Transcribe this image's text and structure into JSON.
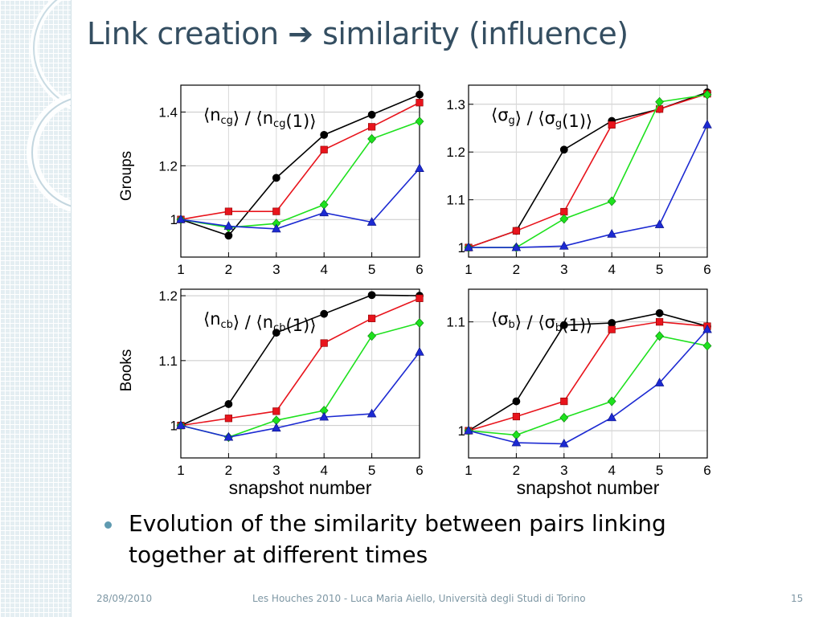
{
  "slide": {
    "title_left": "Link creation",
    "title_arrow": "➔",
    "title_right": "similarity (influence)",
    "row_labels": [
      "Groups",
      "Books"
    ],
    "bullet": "Evolution of the similarity between pairs linking together at different times",
    "footer": {
      "date": "28/09/2010",
      "center": "Les Houches 2010 - Luca Maria Aiello, Università degli Studi di Torino",
      "page": "15"
    }
  },
  "series_colors": [
    "#000000",
    "#e8141c",
    "#1ee11e",
    "#1c2ad2"
  ],
  "series_markers": [
    "circle",
    "square",
    "diamond",
    "triangle"
  ],
  "chart_data": [
    {
      "id": "ncg",
      "type": "line",
      "row": "Groups",
      "legend_main": "⟨n",
      "legend_sub": "cg",
      "legend_rest": "⟩ / ⟨n",
      "legend_sub2": "cg",
      "legend_end": "(1)⟩",
      "x": [
        1,
        2,
        3,
        4,
        5,
        6
      ],
      "xticks": [
        "1",
        "2",
        "3",
        "4",
        "5",
        "6"
      ],
      "xlabel": "",
      "ylim": [
        0.86,
        1.5
      ],
      "yticks": [
        1.0,
        1.2,
        1.4
      ],
      "yticklabels": [
        "1",
        "1.2",
        "1.4"
      ],
      "series": [
        {
          "values": [
            1.0,
            0.94,
            1.155,
            1.315,
            1.39,
            1.465
          ]
        },
        {
          "values": [
            1.0,
            1.03,
            1.03,
            1.26,
            1.345,
            1.435
          ]
        },
        {
          "values": [
            1.0,
            0.97,
            0.985,
            1.055,
            1.3,
            1.365
          ]
        },
        {
          "values": [
            1.0,
            0.975,
            0.965,
            1.025,
            0.99,
            1.19
          ]
        }
      ]
    },
    {
      "id": "sg",
      "type": "line",
      "row": "Groups",
      "legend_main": "⟨σ",
      "legend_sub": "g",
      "legend_rest": "⟩ / ⟨σ",
      "legend_sub2": "g",
      "legend_end": "(1)⟩",
      "x": [
        1,
        2,
        3,
        4,
        5,
        6
      ],
      "xticks": [
        "1",
        "2",
        "3",
        "4",
        "5",
        "6"
      ],
      "xlabel": "",
      "ylim": [
        0.98,
        1.34
      ],
      "yticks": [
        1.0,
        1.1,
        1.2,
        1.3
      ],
      "yticklabels": [
        "1",
        "1.1",
        "1.2",
        "1.3"
      ],
      "series": [
        {
          "values": [
            1.0,
            1.035,
            1.205,
            1.265,
            1.29,
            1.325
          ]
        },
        {
          "values": [
            1.0,
            1.035,
            1.075,
            1.257,
            1.29,
            1.322
          ]
        },
        {
          "values": [
            1.0,
            1.0,
            1.06,
            1.097,
            1.305,
            1.32
          ]
        },
        {
          "values": [
            1.0,
            1.0,
            1.003,
            1.028,
            1.048,
            1.257
          ]
        }
      ]
    },
    {
      "id": "ncb",
      "type": "line",
      "row": "Books",
      "legend_main": "⟨n",
      "legend_sub": "cb",
      "legend_rest": "⟩ / ⟨n",
      "legend_sub2": "cb",
      "legend_end": "(1)⟩",
      "x": [
        1,
        2,
        3,
        4,
        5,
        6
      ],
      "xticks": [
        "1",
        "2",
        "3",
        "4",
        "5",
        "6"
      ],
      "xlabel": "snapshot number",
      "ylim": [
        0.95,
        1.21
      ],
      "yticks": [
        1.0,
        1.1,
        1.2
      ],
      "yticklabels": [
        "1",
        "1.1",
        "1.2"
      ],
      "series": [
        {
          "values": [
            1.0,
            1.033,
            1.143,
            1.172,
            1.201,
            1.2
          ]
        },
        {
          "values": [
            1.0,
            1.011,
            1.022,
            1.127,
            1.165,
            1.196
          ]
        },
        {
          "values": [
            1.0,
            0.982,
            1.008,
            1.023,
            1.138,
            1.158
          ]
        },
        {
          "values": [
            1.0,
            0.982,
            0.996,
            1.013,
            1.018,
            1.113
          ]
        }
      ]
    },
    {
      "id": "sb",
      "type": "line",
      "row": "Books",
      "legend_main": "⟨σ",
      "legend_sub": "b",
      "legend_rest": "⟩ / ⟨σ",
      "legend_sub2": "b",
      "legend_end": "(1)⟩",
      "x": [
        1,
        2,
        3,
        4,
        5,
        6
      ],
      "xticks": [
        "1",
        "2",
        "3",
        "4",
        "5",
        "6"
      ],
      "xlabel": "snapshot number",
      "ylim": [
        0.975,
        1.13
      ],
      "yticks": [
        1.0,
        1.1
      ],
      "yticklabels": [
        "1",
        "1.1"
      ],
      "series": [
        {
          "values": [
            1.0,
            1.027,
            1.097,
            1.099,
            1.108,
            1.096
          ]
        },
        {
          "values": [
            1.0,
            1.013,
            1.027,
            1.093,
            1.1,
            1.096
          ]
        },
        {
          "values": [
            1.0,
            0.996,
            1.012,
            1.027,
            1.087,
            1.078
          ]
        },
        {
          "values": [
            1.0,
            0.989,
            0.988,
            1.012,
            1.044,
            1.093
          ]
        }
      ]
    }
  ]
}
